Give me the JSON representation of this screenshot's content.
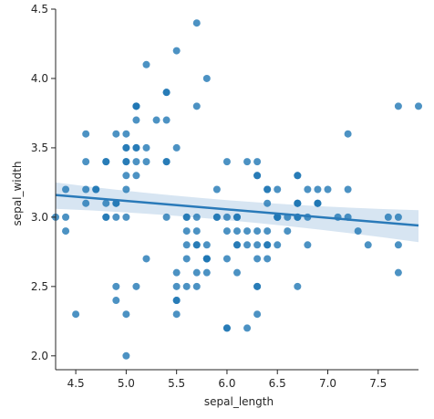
{
  "chart_data": {
    "type": "scatter",
    "title": "",
    "xlabel": "sepal_length",
    "ylabel": "sepal_width",
    "xlim": [
      4.3,
      7.9
    ],
    "ylim": [
      1.9,
      4.5
    ],
    "x_ticks": [
      4.5,
      5.0,
      5.5,
      6.0,
      6.5,
      7.0,
      7.5
    ],
    "x_tick_labels": [
      "4.5",
      "5.0",
      "5.5",
      "6.0",
      "6.5",
      "7.0",
      "7.5"
    ],
    "y_ticks": [
      2.0,
      2.5,
      3.0,
      3.5,
      4.0,
      4.5
    ],
    "y_tick_labels": [
      "2.0",
      "2.5",
      "3.0",
      "3.5",
      "4.0",
      "4.5"
    ],
    "grid": false,
    "colors": {
      "points": "#1f77b4",
      "regression_line": "#2a7ab9",
      "confidence_band": "#c9dcee"
    },
    "regression": {
      "x_range": [
        4.3,
        7.9
      ],
      "y_at_xmin": 3.16,
      "y_at_xmax": 2.94,
      "ci_upper_at_xmin": 3.25,
      "ci_lower_at_xmin": 3.06,
      "ci_upper_at_xmid": 3.09,
      "ci_lower_at_xmid": 3.01,
      "ci_x_mid": 6.0,
      "ci_upper_at_xmax": 3.05,
      "ci_lower_at_xmax": 2.82
    },
    "points": [
      [
        5.1,
        3.5
      ],
      [
        4.9,
        3.0
      ],
      [
        4.7,
        3.2
      ],
      [
        4.6,
        3.1
      ],
      [
        5.0,
        3.6
      ],
      [
        5.4,
        3.9
      ],
      [
        4.6,
        3.4
      ],
      [
        5.0,
        3.4
      ],
      [
        4.4,
        2.9
      ],
      [
        4.9,
        3.1
      ],
      [
        5.4,
        3.7
      ],
      [
        4.8,
        3.4
      ],
      [
        4.8,
        3.0
      ],
      [
        4.3,
        3.0
      ],
      [
        5.8,
        4.0
      ],
      [
        5.7,
        4.4
      ],
      [
        5.4,
        3.9
      ],
      [
        5.1,
        3.5
      ],
      [
        5.7,
        3.8
      ],
      [
        5.1,
        3.8
      ],
      [
        5.4,
        3.4
      ],
      [
        5.1,
        3.7
      ],
      [
        4.6,
        3.6
      ],
      [
        5.1,
        3.3
      ],
      [
        4.8,
        3.4
      ],
      [
        5.0,
        3.0
      ],
      [
        5.0,
        3.4
      ],
      [
        5.2,
        3.5
      ],
      [
        5.2,
        3.4
      ],
      [
        4.7,
        3.2
      ],
      [
        4.8,
        3.1
      ],
      [
        5.4,
        3.4
      ],
      [
        5.2,
        4.1
      ],
      [
        5.5,
        4.2
      ],
      [
        4.9,
        3.1
      ],
      [
        5.0,
        3.2
      ],
      [
        5.5,
        3.5
      ],
      [
        4.9,
        3.6
      ],
      [
        4.4,
        3.0
      ],
      [
        5.1,
        3.4
      ],
      [
        5.0,
        3.5
      ],
      [
        4.5,
        2.3
      ],
      [
        4.4,
        3.2
      ],
      [
        5.0,
        3.5
      ],
      [
        5.1,
        3.8
      ],
      [
        4.8,
        3.0
      ],
      [
        5.1,
        3.8
      ],
      [
        4.6,
        3.2
      ],
      [
        5.3,
        3.7
      ],
      [
        5.0,
        3.3
      ],
      [
        7.0,
        3.2
      ],
      [
        6.4,
        3.2
      ],
      [
        6.9,
        3.1
      ],
      [
        5.5,
        2.3
      ],
      [
        6.5,
        2.8
      ],
      [
        5.7,
        2.8
      ],
      [
        6.3,
        3.3
      ],
      [
        4.9,
        2.4
      ],
      [
        6.6,
        2.9
      ],
      [
        5.2,
        2.7
      ],
      [
        5.0,
        2.0
      ],
      [
        5.9,
        3.0
      ],
      [
        6.0,
        2.2
      ],
      [
        6.1,
        2.9
      ],
      [
        5.6,
        2.9
      ],
      [
        6.7,
        3.1
      ],
      [
        5.6,
        3.0
      ],
      [
        5.8,
        2.7
      ],
      [
        6.2,
        2.2
      ],
      [
        5.6,
        2.5
      ],
      [
        5.9,
        3.2
      ],
      [
        6.1,
        2.8
      ],
      [
        6.3,
        2.5
      ],
      [
        6.1,
        2.8
      ],
      [
        6.4,
        2.9
      ],
      [
        6.6,
        3.0
      ],
      [
        6.8,
        2.8
      ],
      [
        6.7,
        3.0
      ],
      [
        6.0,
        2.9
      ],
      [
        5.7,
        2.6
      ],
      [
        5.5,
        2.4
      ],
      [
        5.5,
        2.4
      ],
      [
        5.8,
        2.7
      ],
      [
        6.0,
        2.7
      ],
      [
        5.4,
        3.0
      ],
      [
        6.0,
        3.4
      ],
      [
        6.7,
        3.1
      ],
      [
        6.3,
        2.3
      ],
      [
        5.6,
        3.0
      ],
      [
        5.5,
        2.5
      ],
      [
        5.5,
        2.6
      ],
      [
        6.1,
        3.0
      ],
      [
        5.8,
        2.6
      ],
      [
        5.0,
        2.3
      ],
      [
        5.6,
        2.7
      ],
      [
        5.7,
        3.0
      ],
      [
        5.7,
        2.9
      ],
      [
        6.2,
        2.9
      ],
      [
        5.1,
        2.5
      ],
      [
        5.7,
        2.8
      ],
      [
        6.3,
        3.3
      ],
      [
        5.8,
        2.7
      ],
      [
        7.1,
        3.0
      ],
      [
        6.3,
        2.9
      ],
      [
        6.5,
        3.0
      ],
      [
        7.6,
        3.0
      ],
      [
        4.9,
        2.5
      ],
      [
        7.3,
        2.9
      ],
      [
        6.7,
        2.5
      ],
      [
        7.2,
        3.6
      ],
      [
        6.5,
        3.2
      ],
      [
        6.4,
        2.7
      ],
      [
        6.8,
        3.0
      ],
      [
        5.7,
        2.5
      ],
      [
        5.8,
        2.8
      ],
      [
        6.4,
        3.2
      ],
      [
        6.5,
        3.0
      ],
      [
        7.7,
        3.8
      ],
      [
        7.7,
        2.6
      ],
      [
        6.0,
        2.2
      ],
      [
        6.9,
        3.2
      ],
      [
        5.6,
        2.8
      ],
      [
        7.7,
        2.8
      ],
      [
        6.3,
        2.7
      ],
      [
        6.7,
        3.3
      ],
      [
        7.2,
        3.2
      ],
      [
        6.2,
        2.8
      ],
      [
        6.1,
        3.0
      ],
      [
        6.4,
        2.8
      ],
      [
        7.2,
        3.0
      ],
      [
        7.4,
        2.8
      ],
      [
        7.9,
        3.8
      ],
      [
        6.4,
        2.8
      ],
      [
        6.3,
        2.8
      ],
      [
        6.1,
        2.6
      ],
      [
        7.7,
        3.0
      ],
      [
        6.3,
        3.4
      ],
      [
        6.4,
        3.1
      ],
      [
        6.0,
        3.0
      ],
      [
        6.9,
        3.1
      ],
      [
        6.7,
        3.1
      ],
      [
        6.9,
        3.1
      ],
      [
        5.8,
        2.7
      ],
      [
        6.8,
        3.2
      ],
      [
        6.7,
        3.3
      ],
      [
        6.7,
        3.0
      ],
      [
        6.3,
        2.5
      ],
      [
        6.5,
        3.0
      ],
      [
        6.2,
        3.4
      ],
      [
        5.9,
        3.0
      ]
    ]
  }
}
